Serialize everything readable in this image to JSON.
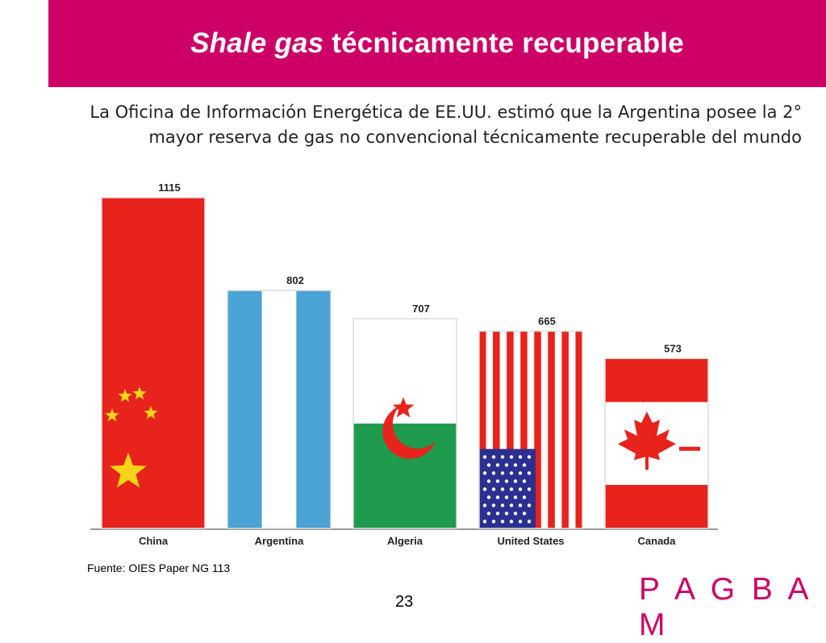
{
  "slide": {
    "title_italic": "Shale gas",
    "title_rest": " técnicamente recuperable",
    "subtitle": "La Oficina de Información Energética de EE.UU. estimó que la Argentina posee la 2° mayor reserva de gas no convencional técnicamente recuperable del mundo",
    "source": "Fuente: OIES Paper NG 113",
    "page_number": "23",
    "logo": "PAGBAM",
    "accent_color": "#cc0066"
  },
  "chart_data": {
    "type": "bar",
    "categories": [
      "China",
      "Argentina",
      "Algeria",
      "United States",
      "Canada"
    ],
    "values": [
      1115,
      802,
      707,
      665,
      573
    ],
    "title": "",
    "xlabel": "",
    "ylabel": "",
    "ylim": [
      0,
      1115
    ],
    "grid": false,
    "bar_fills": [
      "flag-china",
      "flag-argentina",
      "flag-algeria",
      "flag-united-states",
      "flag-canada"
    ]
  }
}
